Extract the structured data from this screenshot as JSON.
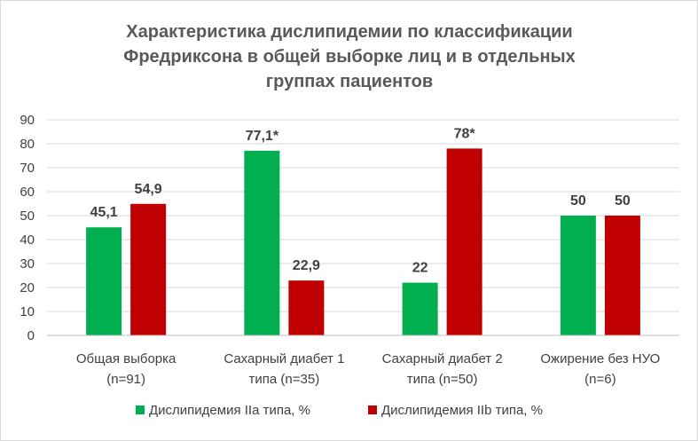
{
  "chart_data": {
    "type": "bar",
    "title": [
      "Характеристика дислипидемии по классификации",
      "Фредриксона в общей выборке лиц и в отдельных",
      "группах пациентов"
    ],
    "categories": [
      [
        "Общая выборка",
        "(n=91)"
      ],
      [
        "Сахарный диабет 1",
        "типа (n=35)"
      ],
      [
        "Сахарный диабет 2",
        "типа (n=50)"
      ],
      [
        "Ожирение без НУО",
        "(n=6)"
      ]
    ],
    "series": [
      {
        "name": "Дислипидемия IIa типа, %",
        "color": "#00b050",
        "values": [
          45.1,
          77.1,
          22,
          50
        ],
        "labels": [
          "45,1",
          "77,1*",
          "22",
          "50"
        ]
      },
      {
        "name": "Дислипидемия IIb типа, %",
        "color": "#c00000",
        "values": [
          54.9,
          22.9,
          78,
          50
        ],
        "labels": [
          "54,9",
          "22,9",
          "78*",
          "50"
        ]
      }
    ],
    "ylim": [
      0,
      90
    ],
    "yticks": [
      0,
      10,
      20,
      30,
      40,
      50,
      60,
      70,
      80,
      90
    ],
    "grid": true,
    "legend_position": "bottom"
  }
}
